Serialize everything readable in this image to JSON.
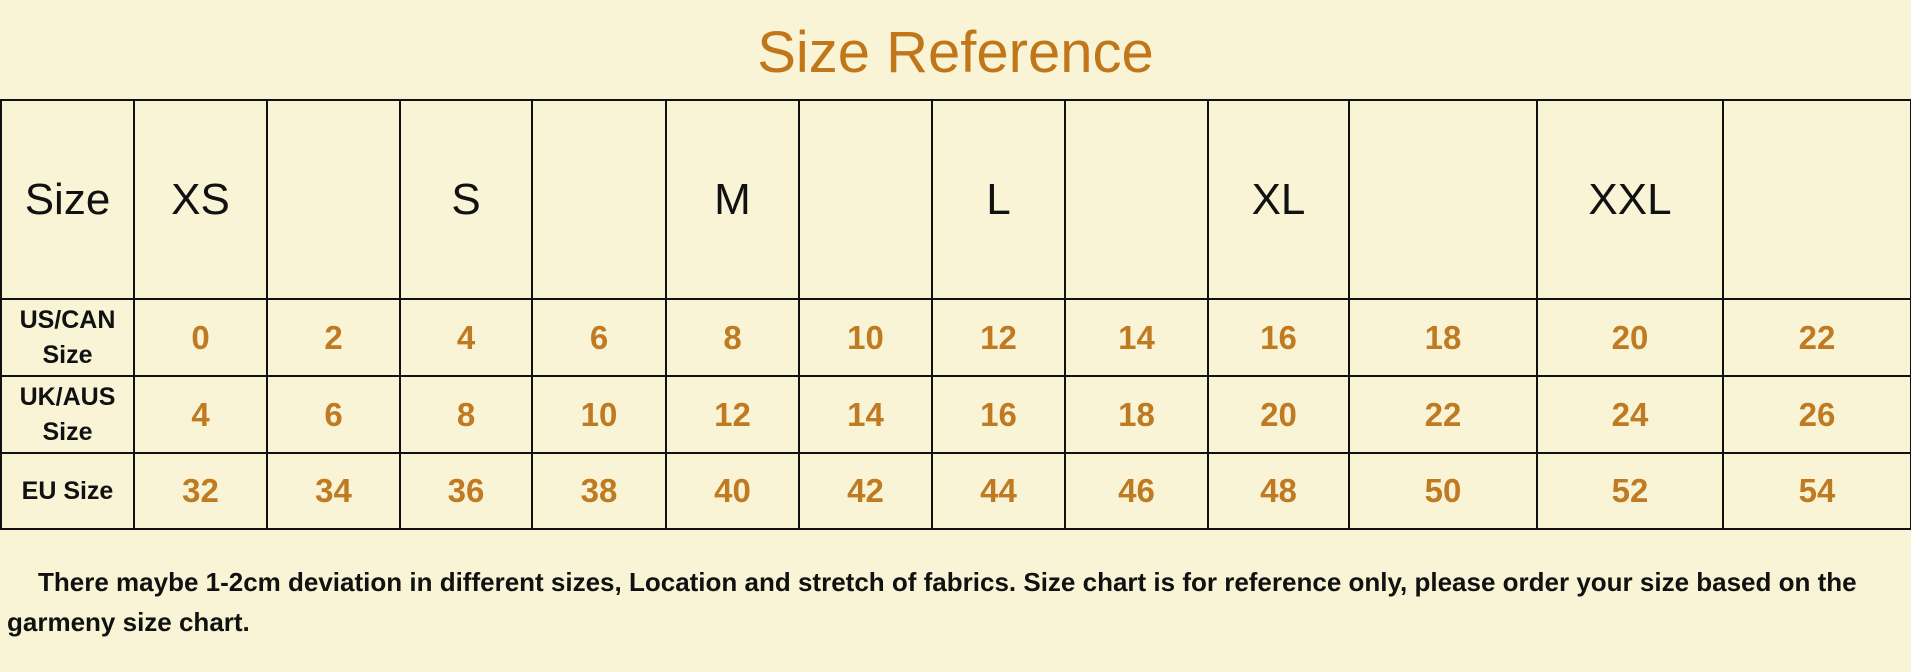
{
  "title": "Size Reference",
  "colors": {
    "background": "#f8f4d5",
    "accent": "#c2761a",
    "value_text": "#bf7a22",
    "border": "#111111"
  },
  "table": {
    "header_label": "Size",
    "size_labels": [
      "XS",
      "",
      "S",
      "",
      "M",
      "",
      "L",
      "",
      "XL",
      "",
      "XXL",
      ""
    ],
    "rows": [
      {
        "label": "US/CAN Size",
        "values": [
          "0",
          "2",
          "4",
          "6",
          "8",
          "10",
          "12",
          "14",
          "16",
          "18",
          "20",
          "22"
        ]
      },
      {
        "label": "UK/AUS Size",
        "values": [
          "4",
          "6",
          "8",
          "10",
          "12",
          "14",
          "16",
          "18",
          "20",
          "22",
          "24",
          "26"
        ]
      },
      {
        "label": "EU Size",
        "values": [
          "32",
          "34",
          "36",
          "38",
          "40",
          "42",
          "44",
          "46",
          "48",
          "50",
          "52",
          "54"
        ]
      }
    ]
  },
  "note": "There maybe 1-2cm deviation in different sizes,  Location and stretch of fabrics. Size chart is for reference only, please order your size based on the garmeny size chart."
}
